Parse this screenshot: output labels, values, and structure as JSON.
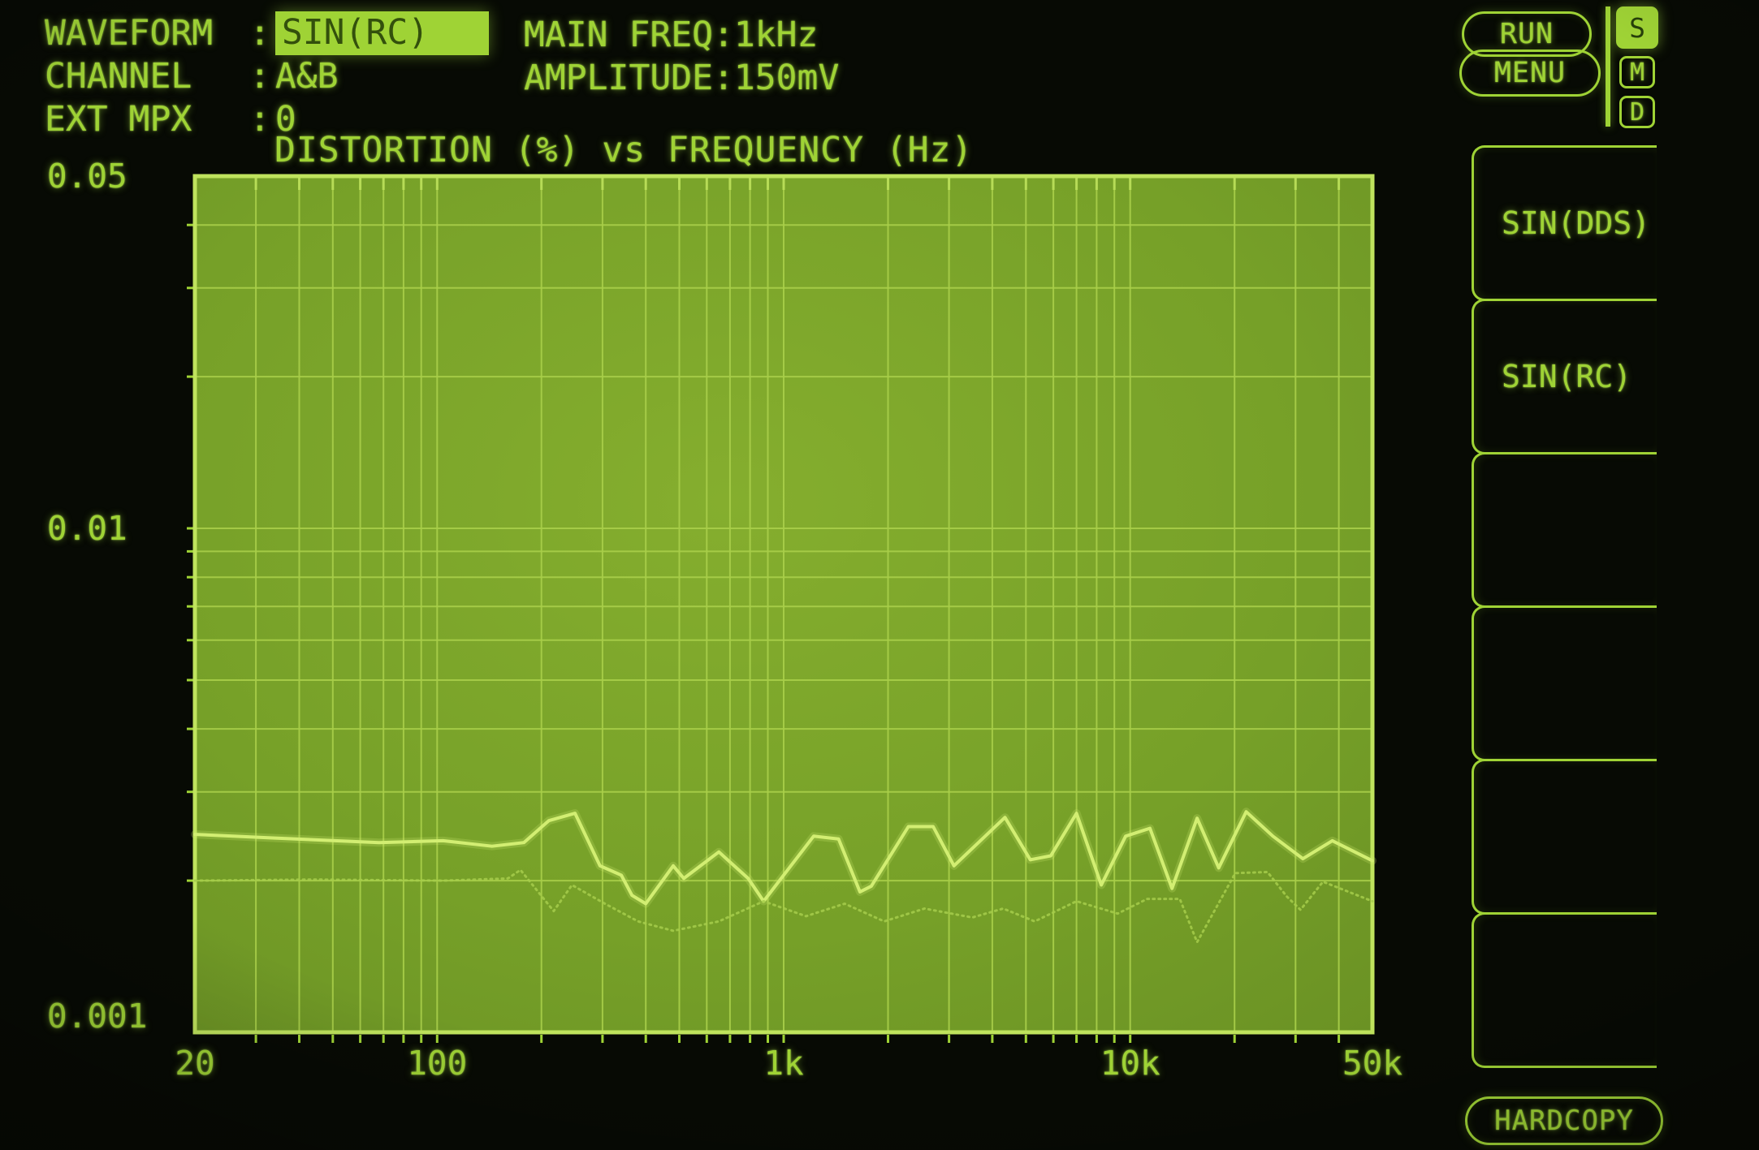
{
  "header": {
    "separator": ":",
    "fields": [
      {
        "label": "WAVEFORM",
        "value": "SIN(RC)",
        "highlighted": true
      },
      {
        "label": "CHANNEL",
        "value": "A&B",
        "highlighted": false
      },
      {
        "label": "EXT MPX",
        "value": "0",
        "highlighted": false
      }
    ],
    "readouts": [
      {
        "label": "MAIN FREQ",
        "value": "1kHz"
      },
      {
        "label": "AMPLITUDE",
        "value": "150mV"
      }
    ],
    "run_label": "RUN",
    "menu_label": "MENU",
    "status_badges": [
      {
        "label": "S",
        "active": true
      },
      {
        "label": "M",
        "active": false
      },
      {
        "label": "D",
        "active": false
      }
    ]
  },
  "side_menu": {
    "items": [
      {
        "label": "SIN(DDS)"
      },
      {
        "label": "SIN(RC)"
      },
      {
        "label": ""
      },
      {
        "label": ""
      },
      {
        "label": ""
      },
      {
        "label": ""
      }
    ],
    "hardcopy_label": "HARDCOPY"
  },
  "chart_data": {
    "type": "line",
    "title": "DISTORTION (%) vs FREQUENCY (Hz)",
    "xlabel": "FREQUENCY (Hz)",
    "ylabel": "DISTORTION (%)",
    "x_scale": "log",
    "y_scale": "log",
    "x_range": [
      20,
      50000
    ],
    "y_range": [
      0.001,
      0.05
    ],
    "x_tick_values": [
      20,
      100,
      1000,
      10000,
      50000
    ],
    "x_tick_labels": [
      "20",
      "100",
      "1k",
      "10k",
      "50k"
    ],
    "y_tick_values": [
      0.05,
      0.01,
      0.001
    ],
    "y_tick_labels": [
      "0.05",
      "0.01",
      "0.001"
    ],
    "grid": true,
    "legend": "none",
    "series": [
      {
        "name": "distortion-channel-a",
        "x": [
          20,
          34,
          68,
          104,
          144,
          178,
          210,
          250,
          295,
          340,
          365,
          400,
          480,
          515,
          650,
          790,
          875,
          1220,
          1440,
          1660,
          1790,
          2290,
          2700,
          3100,
          4350,
          5150,
          5900,
          7000,
          8250,
          9700,
          11400,
          13200,
          15600,
          18000,
          21600,
          25800,
          31500,
          38300,
          50000
        ],
        "y": [
          0.00247,
          0.00243,
          0.00238,
          0.0024,
          0.00234,
          0.00238,
          0.00263,
          0.00272,
          0.00214,
          0.00205,
          0.00187,
          0.0018,
          0.00214,
          0.00202,
          0.00228,
          0.00202,
          0.00182,
          0.00245,
          0.00242,
          0.0019,
          0.00195,
          0.00256,
          0.00256,
          0.00214,
          0.00267,
          0.0022,
          0.00224,
          0.00272,
          0.00196,
          0.00245,
          0.00254,
          0.00193,
          0.00266,
          0.00212,
          0.00274,
          0.00245,
          0.00221,
          0.0024,
          0.00219
        ]
      },
      {
        "name": "distortion-channel-b",
        "x": [
          20,
          44,
          104,
          160,
          174,
          217,
          245,
          305,
          380,
          480,
          650,
          875,
          1160,
          1500,
          1950,
          2550,
          3500,
          4300,
          5300,
          7000,
          9200,
          11200,
          13900,
          15600,
          20100,
          24900,
          28300,
          31000,
          36000,
          50000
        ],
        "y": [
          0.002,
          0.00201,
          0.002,
          0.00202,
          0.0021,
          0.00174,
          0.00196,
          0.0018,
          0.00166,
          0.00159,
          0.00166,
          0.00182,
          0.0017,
          0.0018,
          0.00166,
          0.00176,
          0.00169,
          0.00176,
          0.00166,
          0.00182,
          0.00172,
          0.00184,
          0.00184,
          0.00151,
          0.00207,
          0.00208,
          0.00186,
          0.00175,
          0.00199,
          0.00182
        ]
      }
    ]
  },
  "colors": {
    "accent": "#9fd335",
    "plot_fill": "#76a028",
    "plot_fill_bright": "#85ae2e",
    "plot_fill_dark": "#6a9124",
    "grid": "#a9cf4a",
    "border": "#bfe35d",
    "tick": "#b9dd58",
    "trace_a": "#d2ee72",
    "trace_b": "#a6cd4b",
    "highlight_text": "#33500c",
    "background": "#070a04"
  }
}
